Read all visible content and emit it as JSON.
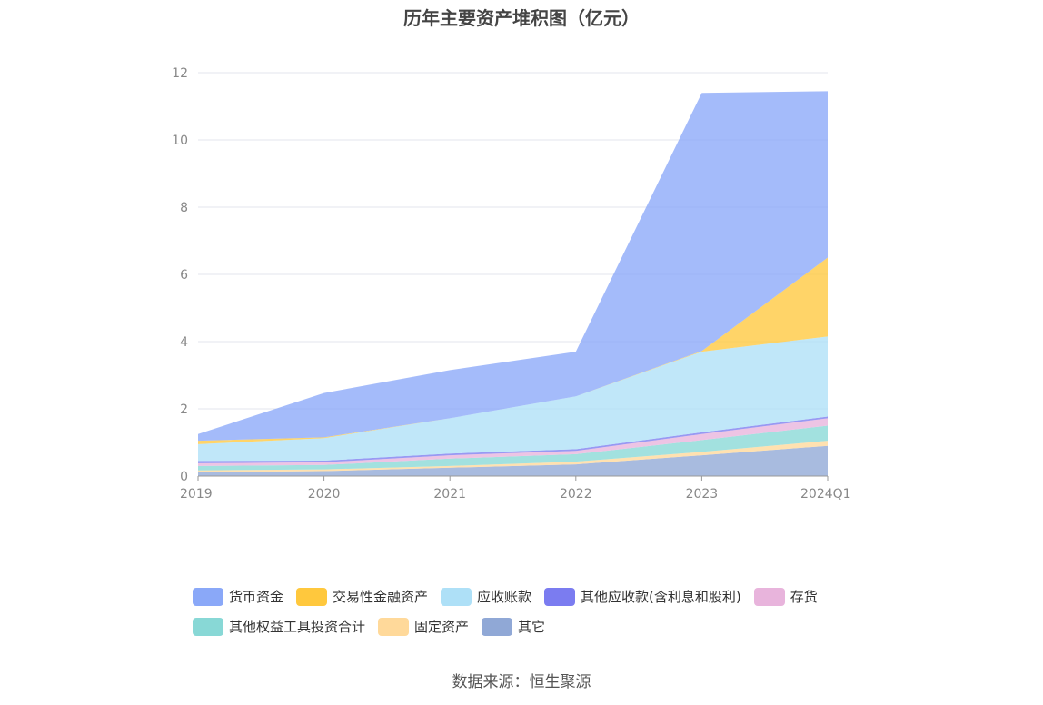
{
  "chart_data": {
    "type": "area",
    "stacked": true,
    "title": "历年主要资产堆积图（亿元）",
    "xlabel": "",
    "ylabel": "",
    "categories": [
      "2019",
      "2020",
      "2021",
      "2022",
      "2023",
      "2024Q1"
    ],
    "ylim": [
      0,
      12
    ],
    "yticks": [
      "0",
      "2",
      "4",
      "6",
      "8",
      "10",
      "12"
    ],
    "grid": true,
    "legend_position": "bottom",
    "series": [
      {
        "name": "其它",
        "color": "#90a8d6",
        "values": [
          0.12,
          0.15,
          0.25,
          0.35,
          0.62,
          0.9
        ]
      },
      {
        "name": "固定资产",
        "color": "#ffd99a",
        "values": [
          0.05,
          0.05,
          0.05,
          0.08,
          0.1,
          0.15
        ]
      },
      {
        "name": "其他权益工具投资合计",
        "color": "#88d8d6",
        "values": [
          0.13,
          0.13,
          0.22,
          0.22,
          0.35,
          0.45
        ]
      },
      {
        "name": "存货",
        "color": "#e8b4dc",
        "values": [
          0.08,
          0.08,
          0.1,
          0.1,
          0.18,
          0.22
        ]
      },
      {
        "name": "其他应收款(含利息和股利)",
        "color": "#7b7cf0",
        "values": [
          0.07,
          0.05,
          0.05,
          0.05,
          0.05,
          0.05
        ]
      },
      {
        "name": "应收账款",
        "color": "#aee0f7",
        "values": [
          0.5,
          0.67,
          1.05,
          1.57,
          2.4,
          2.38
        ]
      },
      {
        "name": "交易性金融资产",
        "color": "#ffc83d",
        "values": [
          0.1,
          0.02,
          0.0,
          0.0,
          0.02,
          2.35
        ]
      },
      {
        "name": "货币资金",
        "color": "#8aa8f8",
        "values": [
          0.2,
          1.32,
          1.43,
          1.33,
          7.68,
          4.95
        ]
      }
    ]
  },
  "legend": {
    "row1": [
      {
        "label": "货币资金",
        "color": "#8aa8f8"
      },
      {
        "label": "交易性金融资产",
        "color": "#ffc83d"
      },
      {
        "label": "应收账款",
        "color": "#aee0f7"
      },
      {
        "label": "其他应收款(含利息和股利)",
        "color": "#7b7cf0"
      },
      {
        "label": "存货",
        "color": "#e8b4dc"
      }
    ],
    "row2": [
      {
        "label": "其他权益工具投资合计",
        "color": "#88d8d6"
      },
      {
        "label": "固定资产",
        "color": "#ffd99a"
      },
      {
        "label": "其它",
        "color": "#90a8d6"
      }
    ]
  },
  "source": "数据来源：恒生聚源"
}
